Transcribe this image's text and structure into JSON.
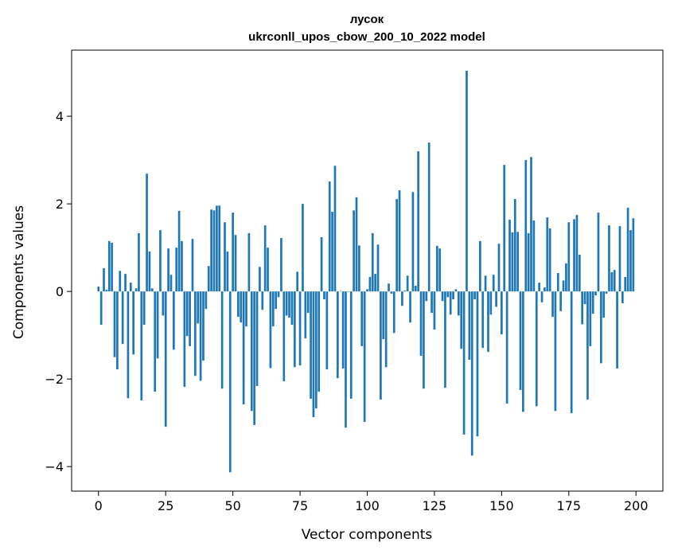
{
  "chart_data": {
    "type": "bar",
    "title": "лусок",
    "subtitle": "ukrconll_upos_cbow_200_10_2022 model",
    "xlabel": "Vector components",
    "ylabel": "Components values",
    "xlim": [
      -10,
      210
    ],
    "ylim": [
      -4.56,
      5.51
    ],
    "xticks": [
      0,
      25,
      50,
      75,
      100,
      125,
      150,
      175,
      200
    ],
    "xtick_labels": [
      "0",
      "25",
      "50",
      "75",
      "100",
      "125",
      "150",
      "175",
      "200"
    ],
    "yticks": [
      4,
      2,
      0,
      -2,
      -4
    ],
    "ytick_labels": [
      "4",
      "2",
      "0",
      "−2",
      "−4"
    ],
    "grid": false,
    "color": "#1f77b4",
    "values": [
      0.11,
      -0.76,
      0.53,
      0.04,
      1.15,
      1.11,
      -1.5,
      -1.78,
      0.47,
      -1.2,
      0.4,
      -2.44,
      0.2,
      -1.44,
      0.07,
      1.33,
      -2.49,
      -0.76,
      2.69,
      0.91,
      0.07,
      -2.29,
      -1.53,
      1.4,
      -0.55,
      -3.09,
      0.98,
      0.38,
      -1.33,
      1.0,
      1.84,
      1.15,
      -2.18,
      -1.02,
      -1.25,
      1.2,
      -1.93,
      -0.73,
      -2.04,
      -1.58,
      -0.4,
      0.58,
      1.87,
      1.85,
      1.96,
      1.96,
      -2.22,
      1.58,
      0.91,
      -4.13,
      1.8,
      1.29,
      -0.58,
      -0.71,
      -2.58,
      -0.8,
      1.33,
      -2.73,
      -3.05,
      -2.16,
      0.56,
      -0.42,
      1.51,
      1.0,
      -1.75,
      -0.8,
      -0.4,
      -0.13,
      1.22,
      -2.05,
      -0.55,
      -0.6,
      -0.76,
      -1.73,
      0.45,
      -1.69,
      2.0,
      -1.07,
      -0.49,
      -2.45,
      -2.87,
      -2.67,
      -2.29,
      1.24,
      -0.18,
      -1.78,
      2.51,
      1.82,
      2.87,
      -1.98,
      0.01,
      -1.76,
      -3.11,
      -0.01,
      -2.45,
      1.85,
      2.15,
      1.05,
      -1.25,
      -2.98,
      0.05,
      0.33,
      1.33,
      0.4,
      1.07,
      -2.47,
      -1.09,
      -1.73,
      0.18,
      -0.05,
      -0.95,
      2.11,
      2.31,
      -0.33,
      0.02,
      0.36,
      -0.71,
      2.27,
      0.13,
      3.2,
      -1.47,
      -2.22,
      -0.22,
      3.4,
      -0.49,
      -0.87,
      1.04,
      0.98,
      -0.22,
      -2.2,
      -0.13,
      -0.53,
      -0.18,
      0.05,
      -0.55,
      -1.31,
      -3.27,
      5.04,
      -1.56,
      -3.75,
      -0.18,
      -3.31,
      1.15,
      -1.29,
      0.36,
      -1.38,
      -0.53,
      0.38,
      -0.35,
      1.09,
      -0.98,
      2.89,
      -2.56,
      1.64,
      1.35,
      2.11,
      1.36,
      -2.25,
      -2.75,
      3.0,
      1.33,
      3.07,
      1.62,
      -2.62,
      0.2,
      -0.25,
      0.09,
      1.69,
      1.44,
      -0.58,
      -2.73,
      0.42,
      -0.45,
      0.25,
      0.64,
      1.58,
      -2.78,
      1.65,
      1.75,
      0.84,
      -0.75,
      -0.29,
      -2.47,
      -1.25,
      -0.51,
      -0.09,
      1.8,
      -1.64,
      -0.6,
      -0.05,
      1.51,
      0.44,
      0.49,
      -1.76,
      1.49,
      -0.27,
      0.33,
      1.91,
      1.4,
      1.67
    ]
  }
}
